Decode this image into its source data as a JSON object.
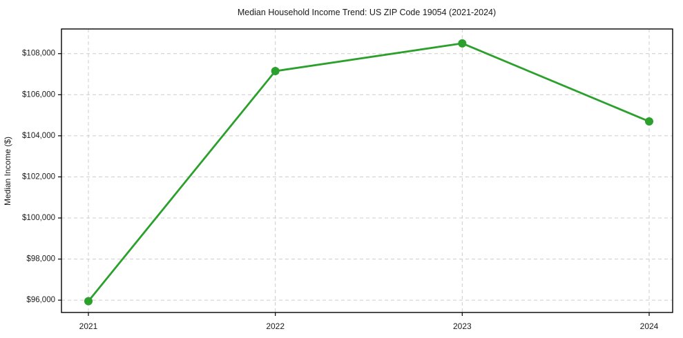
{
  "chart_data": {
    "type": "line",
    "title": "Median Household Income Trend: US ZIP Code 19054 (2021-2024)",
    "xlabel": "",
    "ylabel": "Median Income ($)",
    "x": [
      "2021",
      "2022",
      "2023",
      "2024"
    ],
    "series": [
      {
        "name": "Median Household Income",
        "values": [
          95950,
          107150,
          108500,
          104700
        ]
      }
    ],
    "yticks": [
      96000,
      98000,
      100000,
      102000,
      104000,
      106000,
      108000
    ],
    "ytick_labels": [
      "$96,000",
      "$98,000",
      "$100,000",
      "$102,000",
      "$104,000",
      "$106,000",
      "$108,000"
    ],
    "ylim": [
      95400,
      109200
    ],
    "grid": "dashed-both-axes",
    "legend": "none",
    "line_color": "#2ca02c",
    "marker": "circle",
    "background_color": "#ffffff"
  }
}
